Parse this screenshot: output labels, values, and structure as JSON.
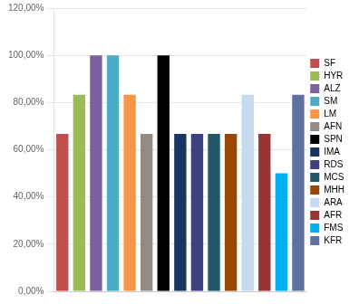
{
  "chart_data": {
    "type": "bar",
    "categories": [
      "SF",
      "HYR",
      "ALZ",
      "SM",
      "LM",
      "AFN",
      "SPN",
      "IMA",
      "RDS",
      "MCS",
      "MHH",
      "ARA",
      "AFR",
      "FMS",
      "KFR"
    ],
    "values": [
      66.7,
      83.3,
      100.0,
      100.0,
      83.3,
      66.7,
      100.0,
      66.7,
      66.7,
      66.7,
      66.7,
      83.3,
      66.7,
      50.0,
      83.3
    ],
    "colors": [
      "#C0504D",
      "#9BBB59",
      "#7B61A0",
      "#4BACC6",
      "#F79646",
      "#948A84",
      "#000000",
      "#17375E",
      "#404080",
      "#215868",
      "#974706",
      "#C5D9F1",
      "#963634",
      "#00B0F0",
      "#6070A0"
    ],
    "ylim": [
      0,
      120
    ],
    "yticks": [
      {
        "value": 0,
        "label": "0,00%"
      },
      {
        "value": 20,
        "label": "20,00%"
      },
      {
        "value": 40,
        "label": "40,00%"
      },
      {
        "value": 60,
        "label": "60,00%"
      },
      {
        "value": 80,
        "label": "80,00%"
      },
      {
        "value": 100,
        "label": "100,00%"
      },
      {
        "value": 120,
        "label": "120,00%"
      }
    ],
    "grid": true,
    "legend": "right",
    "tick_labels": "y"
  }
}
